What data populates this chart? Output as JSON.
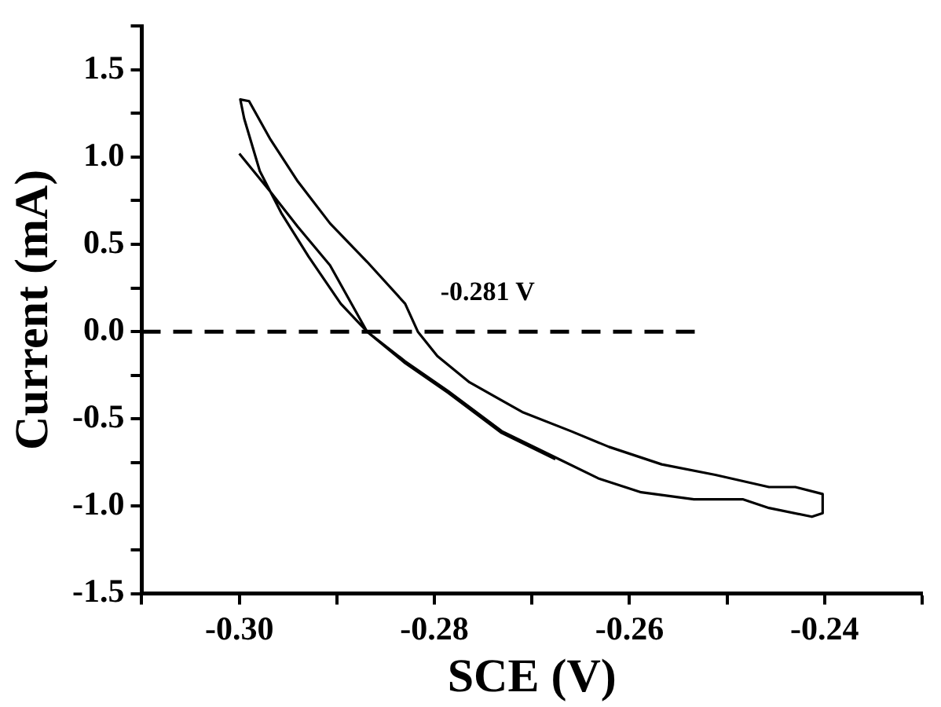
{
  "chart_data": {
    "type": "line",
    "xlabel": "SCE (V)",
    "ylabel": "Current (mA)",
    "xlim": [
      -0.31,
      -0.23
    ],
    "xticks": [
      {
        "value": -0.31,
        "label": null
      },
      {
        "value": -0.3,
        "label": "-0.30"
      },
      {
        "value": -0.29,
        "label": null
      },
      {
        "value": -0.28,
        "label": "-0.28"
      },
      {
        "value": -0.27,
        "label": null
      },
      {
        "value": -0.26,
        "label": "-0.26"
      },
      {
        "value": -0.25,
        "label": null
      },
      {
        "value": -0.24,
        "label": "-0.24"
      },
      {
        "value": -0.23,
        "label": null
      }
    ],
    "ylim": [
      -1.5,
      1.75
    ],
    "yticks": [
      -1.5,
      {
        "value": -1.25,
        "label": null
      },
      {
        "value": -1,
        "label": "-1.0"
      },
      {
        "value": -0.75,
        "label": null
      },
      -0.5,
      {
        "value": -0.25,
        "label": null
      },
      {
        "value": 0,
        "label": "0.0"
      },
      {
        "value": 0.25,
        "label": null
      },
      0.5,
      {
        "value": 0.75,
        "label": null
      },
      {
        "value": 1,
        "label": "1.0"
      },
      {
        "value": 1.25,
        "label": null
      },
      1.5,
      {
        "value": 1.75,
        "label": null
      }
    ],
    "series": [
      {
        "color": "#000000",
        "x": [
          -0.3,
          -0.2968,
          -0.294,
          -0.2907,
          -0.2869,
          -0.283,
          -0.2786,
          -0.2731,
          -0.2676,
          -0.2632,
          -0.2588,
          -0.2534,
          -0.2484,
          -0.2457,
          -0.2413,
          -0.2402,
          -0.2402,
          -0.243,
          -0.2457,
          -0.2512,
          -0.2567,
          -0.2621,
          -0.266,
          -0.271,
          -0.2764,
          -0.2797,
          -0.2817,
          -0.283,
          -0.2869,
          -0.2907,
          -0.294,
          -0.2968,
          -0.299,
          -0.2999,
          -0.2995,
          -0.2979,
          -0.2957,
          -0.2929,
          -0.2896,
          -0.2869,
          -0.283,
          -0.2786,
          -0.2731,
          -0.2676
        ],
        "values": [
          1.02,
          0.8,
          0.6,
          0.38,
          0,
          -0.17,
          -0.34,
          -0.57,
          -0.72,
          -0.84,
          -0.92,
          -0.96,
          -0.96,
          -1.01,
          -1.06,
          -1.04,
          -0.93,
          -0.89,
          -0.89,
          -0.82,
          -0.76,
          -0.66,
          -0.57,
          -0.46,
          -0.29,
          -0.14,
          0,
          0.16,
          0.4,
          0.62,
          0.86,
          1.1,
          1.32,
          1.33,
          1.22,
          0.92,
          0.68,
          0.43,
          0.16,
          0,
          -0.18,
          -0.35,
          -0.58,
          -0.73
        ]
      }
    ],
    "ref_lines": [
      {
        "axis": "y",
        "value": 0,
        "line_style": "dashed",
        "color": "#000000"
      }
    ],
    "annotations": [
      {
        "text": "-0.281 V",
        "x": -0.281,
        "y": 0
      }
    ],
    "grid": false,
    "legend": false,
    "marker": "none",
    "line_style": "solid"
  }
}
